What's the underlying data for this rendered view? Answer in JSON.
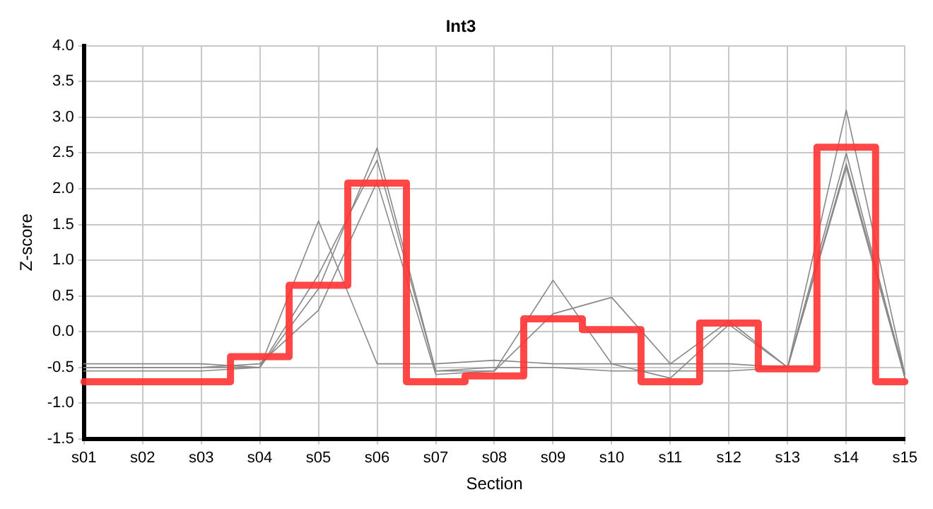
{
  "chart_data": {
    "type": "line",
    "title": "Int3",
    "xlabel": "Section",
    "ylabel": "Z-score",
    "categories": [
      "s01",
      "s02",
      "s03",
      "s04",
      "s05",
      "s06",
      "s07",
      "s08",
      "s09",
      "s10",
      "s11",
      "s12",
      "s13",
      "s14",
      "s15"
    ],
    "series": [
      {
        "color": "#888888",
        "values": [
          -0.45,
          -0.45,
          -0.45,
          -0.5,
          1.55,
          -0.45,
          -0.45,
          -0.4,
          -0.45,
          -0.45,
          -0.45,
          -0.45,
          -0.5,
          2.3,
          -0.65
        ]
      },
      {
        "color": "#888888",
        "values": [
          -0.5,
          -0.5,
          -0.5,
          -0.5,
          0.6,
          2.57,
          -0.55,
          -0.55,
          0.72,
          -0.45,
          -0.65,
          0.1,
          -0.5,
          3.1,
          -0.6
        ]
      },
      {
        "color": "#888888",
        "values": [
          -0.5,
          -0.5,
          -0.5,
          -0.45,
          0.3,
          2.1,
          -0.6,
          -0.55,
          0.25,
          0.48,
          -0.45,
          0.15,
          -0.5,
          2.35,
          -0.6
        ]
      },
      {
        "color": "#888888",
        "values": [
          -0.55,
          -0.55,
          -0.55,
          -0.5,
          0.8,
          2.4,
          -0.55,
          -0.5,
          -0.5,
          -0.55,
          -0.55,
          -0.55,
          -0.5,
          2.5,
          -0.65
        ]
      },
      {
        "type": "step",
        "color": "#ff3333",
        "values": [
          -0.7,
          -0.7,
          -0.7,
          -0.35,
          0.65,
          2.08,
          -0.7,
          -0.62,
          0.18,
          0.03,
          -0.7,
          0.12,
          -0.52,
          2.58,
          -0.7
        ]
      }
    ],
    "ylim": [
      -1.5,
      4.0
    ],
    "yticks": [
      {
        "value": -1.5,
        "label": "-1.5"
      },
      {
        "value": -1,
        "label": "-1.0"
      },
      {
        "value": -0.5,
        "label": "-0.5"
      },
      {
        "value": 0,
        "label": "0.0"
      },
      {
        "value": 0.5,
        "label": "0.5"
      },
      {
        "value": 1,
        "label": "1.0"
      },
      {
        "value": 1.5,
        "label": "1.5"
      },
      {
        "value": 2,
        "label": "2.0"
      },
      {
        "value": 2.5,
        "label": "2.5"
      },
      {
        "value": 3,
        "label": "3.0"
      },
      {
        "value": 3.5,
        "label": "3.5"
      },
      {
        "value": 4,
        "label": "4.0"
      }
    ],
    "grid": true,
    "legend": false,
    "marker": "none"
  }
}
